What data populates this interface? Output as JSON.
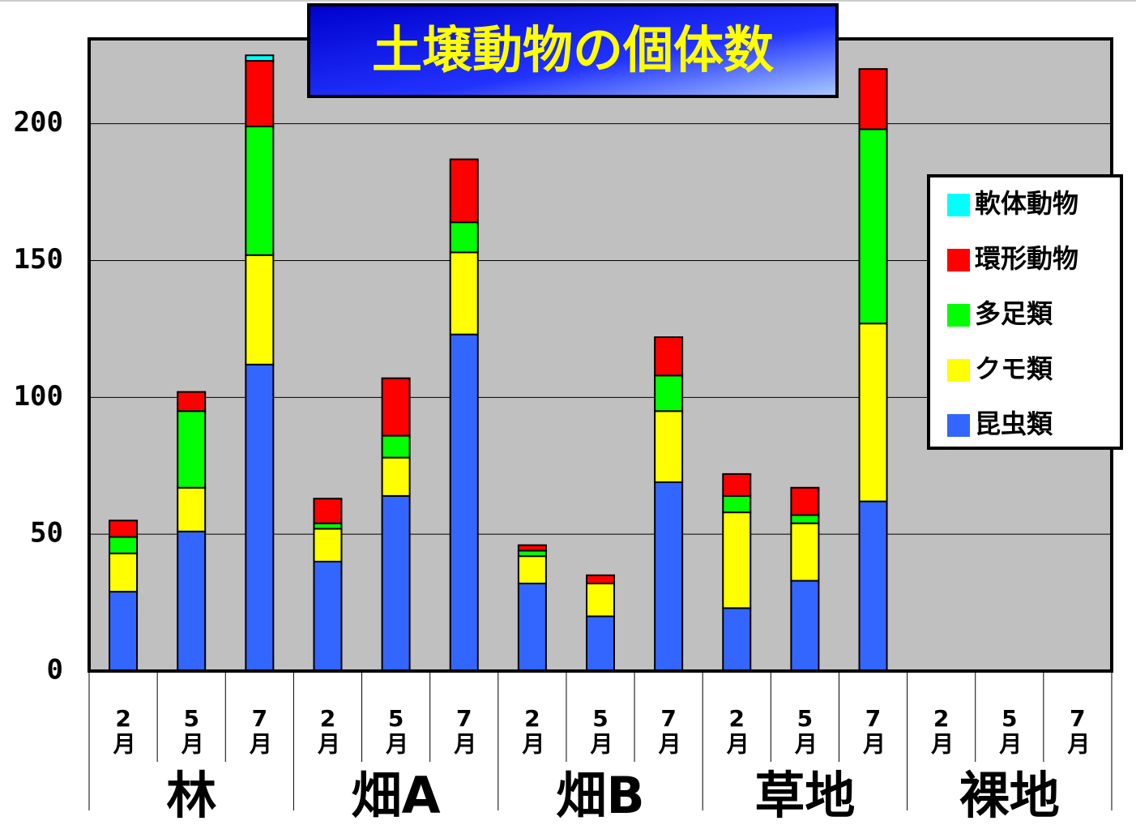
{
  "chart_data": {
    "type": "bar",
    "stacked": true,
    "title": "土壌動物の個体数",
    "categories": [
      "2月",
      "5月",
      "7月",
      "2月",
      "5月",
      "7月",
      "2月",
      "5月",
      "7月",
      "2月",
      "5月",
      "7月",
      "2月",
      "5月",
      "7月"
    ],
    "groups": [
      "林",
      "畑A",
      "畑B",
      "草地",
      "裸地"
    ],
    "series": [
      {
        "name": "昆虫類",
        "color": "#3366ff",
        "values": [
          29,
          51,
          112,
          40,
          64,
          123,
          32,
          20,
          69,
          23,
          33,
          62,
          0,
          0,
          0
        ]
      },
      {
        "name": "クモ類",
        "color": "#ffff00",
        "values": [
          14,
          16,
          40,
          12,
          14,
          30,
          10,
          12,
          26,
          35,
          21,
          65,
          0,
          0,
          0
        ]
      },
      {
        "name": "多足類",
        "color": "#00ff00",
        "values": [
          6,
          28,
          47,
          2,
          8,
          11,
          2,
          0,
          13,
          6,
          3,
          71,
          0,
          0,
          0
        ]
      },
      {
        "name": "環形動物",
        "color": "#ff0000",
        "values": [
          6,
          7,
          24,
          9,
          21,
          23,
          2,
          3,
          14,
          8,
          10,
          22,
          0,
          0,
          0
        ]
      },
      {
        "name": "軟体動物",
        "color": "#00ffff",
        "values": [
          0,
          0,
          2,
          0,
          0,
          0,
          0,
          0,
          0,
          0,
          0,
          0,
          0,
          0,
          0
        ]
      }
    ],
    "ylim": [
      0,
      231
    ],
    "yticks": [
      0,
      50,
      100,
      150,
      200
    ],
    "grid": true,
    "legend": "right"
  }
}
